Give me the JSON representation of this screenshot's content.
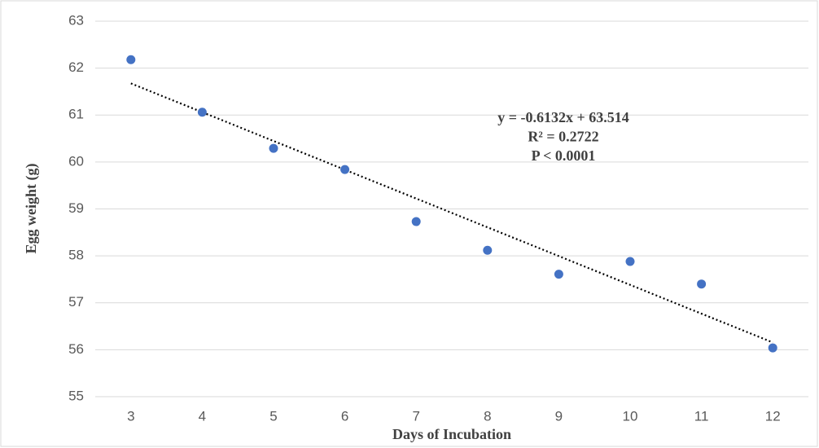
{
  "chart_data": {
    "type": "scatter",
    "x_label": "Days of Incubation",
    "y_label": "Egg weight (g)",
    "x": [
      3,
      4,
      5,
      6,
      7,
      8,
      9,
      10,
      11,
      12
    ],
    "series": [
      {
        "color": "#4472c4",
        "values": [
          62.18,
          61.06,
          60.29,
          59.84,
          58.73,
          58.12,
          57.61,
          57.88,
          57.4,
          56.04
        ]
      }
    ],
    "xlim": [
      2.5,
      12.5
    ],
    "xticks": [
      3,
      4,
      5,
      6,
      7,
      8,
      9,
      10,
      11,
      12
    ],
    "ylim": [
      55,
      63
    ],
    "yticks": [
      55,
      56,
      57,
      58,
      59,
      60,
      61,
      62,
      63
    ],
    "grid": true,
    "trendline": {
      "slope": -0.6132,
      "intercept": 63.514,
      "color": "#000000"
    },
    "annotations": [
      "y = -0.6132x + 63.514",
      "R² = 0.2722",
      "P < 0.0001"
    ]
  }
}
